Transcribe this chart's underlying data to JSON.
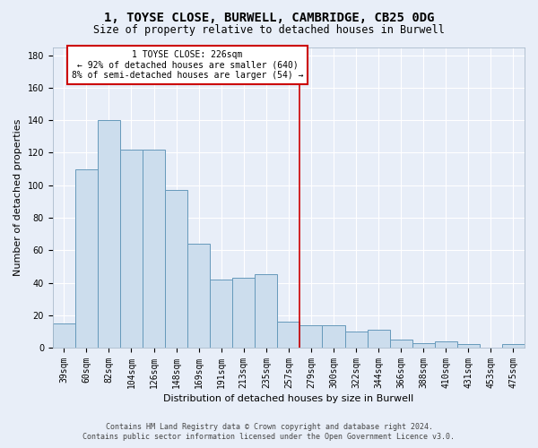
{
  "title": "1, TOYSE CLOSE, BURWELL, CAMBRIDGE, CB25 0DG",
  "subtitle": "Size of property relative to detached houses in Burwell",
  "xlabel": "Distribution of detached houses by size in Burwell",
  "ylabel": "Number of detached properties",
  "categories": [
    "39sqm",
    "60sqm",
    "82sqm",
    "104sqm",
    "126sqm",
    "148sqm",
    "169sqm",
    "191sqm",
    "213sqm",
    "235sqm",
    "257sqm",
    "279sqm",
    "300sqm",
    "322sqm",
    "344sqm",
    "366sqm",
    "388sqm",
    "410sqm",
    "431sqm",
    "453sqm",
    "475sqm"
  ],
  "values": [
    15,
    110,
    140,
    122,
    122,
    97,
    64,
    42,
    43,
    45,
    16,
    14,
    14,
    10,
    11,
    5,
    3,
    4,
    2,
    0,
    2
  ],
  "bar_color": "#ccdded",
  "bar_edge_color": "#6699bb",
  "background_color": "#e8eef8",
  "grid_color": "#ffffff",
  "vline_index": 10.5,
  "vline_color": "#cc0000",
  "annotation_title": "1 TOYSE CLOSE: 226sqm",
  "annotation_line1": "← 92% of detached houses are smaller (640)",
  "annotation_line2": "8% of semi-detached houses are larger (54) →",
  "annotation_box_facecolor": "#ffffff",
  "annotation_box_edgecolor": "#cc0000",
  "footer_line1": "Contains HM Land Registry data © Crown copyright and database right 2024.",
  "footer_line2": "Contains public sector information licensed under the Open Government Licence v3.0.",
  "ylim": [
    0,
    185
  ],
  "yticks": [
    0,
    20,
    40,
    60,
    80,
    100,
    120,
    140,
    160,
    180
  ],
  "title_fontsize": 10,
  "subtitle_fontsize": 8.5,
  "tick_fontsize": 7,
  "ylabel_fontsize": 8,
  "xlabel_fontsize": 8,
  "footer_fontsize": 6
}
